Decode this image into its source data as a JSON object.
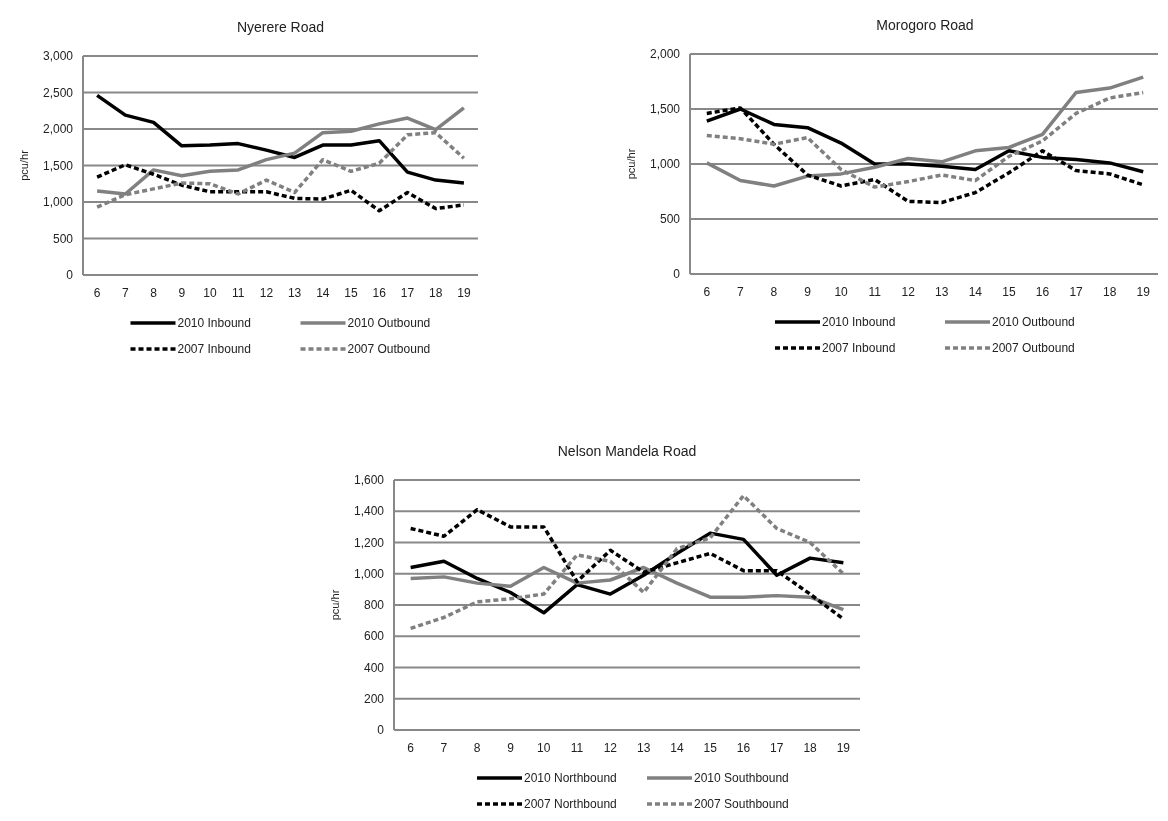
{
  "chart_data": [
    {
      "type": "line",
      "title": "Nyerere Road",
      "ylabel": "pcu/hr",
      "categories": [
        "6",
        "7",
        "8",
        "9",
        "10",
        "11",
        "12",
        "13",
        "14",
        "15",
        "16",
        "17",
        "18",
        "19"
      ],
      "ylim": [
        0,
        3000
      ],
      "yticks": [
        {
          "value": 0,
          "label": "0"
        },
        {
          "value": 500,
          "label": "500"
        },
        {
          "value": 1000,
          "label": "1,000"
        },
        {
          "value": 1500,
          "label": "1,500"
        },
        {
          "value": 2000,
          "label": "2,000"
        },
        {
          "value": 2500,
          "label": "2,500"
        },
        {
          "value": 3000,
          "label": "3,000"
        }
      ],
      "grid": "y",
      "legend": "bottom",
      "series": [
        {
          "name": "2010 Inbound",
          "color": "#000000",
          "line_style": "solid",
          "values": [
            2460,
            2190,
            2090,
            1770,
            1780,
            1800,
            1710,
            1610,
            1780,
            1780,
            1840,
            1410,
            1300,
            1260
          ]
        },
        {
          "name": "2010 Outbound",
          "color": "#808080",
          "line_style": "solid",
          "values": [
            1150,
            1110,
            1440,
            1360,
            1420,
            1440,
            1580,
            1670,
            1950,
            1970,
            2070,
            2150,
            1990,
            2290
          ]
        },
        {
          "name": "2007 Inbound",
          "color": "#000000",
          "line_style": "dashed",
          "values": [
            1340,
            1510,
            1380,
            1230,
            1140,
            1140,
            1140,
            1050,
            1040,
            1160,
            880,
            1130,
            910,
            960
          ]
        },
        {
          "name": "2007 Outbound",
          "color": "#808080",
          "line_style": "dashed",
          "values": [
            930,
            1100,
            1180,
            1260,
            1250,
            1110,
            1300,
            1130,
            1580,
            1420,
            1530,
            1920,
            1950,
            1600
          ]
        }
      ]
    },
    {
      "type": "line",
      "title": "Morogoro Road",
      "ylabel": "pcu/hr",
      "categories": [
        "6",
        "7",
        "8",
        "9",
        "10",
        "11",
        "12",
        "13",
        "14",
        "15",
        "16",
        "17",
        "18",
        "19"
      ],
      "ylim": [
        0,
        2000
      ],
      "yticks": [
        {
          "value": 0,
          "label": "0"
        },
        {
          "value": 500,
          "label": "500"
        },
        {
          "value": 1000,
          "label": "1,000"
        },
        {
          "value": 1500,
          "label": "1,500"
        },
        {
          "value": 2000,
          "label": "2,000"
        }
      ],
      "grid": "y",
      "legend": "bottom",
      "series": [
        {
          "name": "2010 Inbound",
          "color": "#000000",
          "line_style": "solid",
          "values": [
            1390,
            1500,
            1360,
            1330,
            1190,
            1000,
            1000,
            980,
            950,
            1120,
            1060,
            1040,
            1010,
            930
          ]
        },
        {
          "name": "2010 Outbound",
          "color": "#808080",
          "line_style": "solid",
          "values": [
            1010,
            850,
            800,
            890,
            910,
            970,
            1050,
            1020,
            1120,
            1150,
            1270,
            1650,
            1690,
            1790
          ]
        },
        {
          "name": "2007 Inbound",
          "color": "#000000",
          "line_style": "dashed",
          "values": [
            1460,
            1510,
            1180,
            900,
            800,
            860,
            660,
            650,
            740,
            920,
            1120,
            940,
            910,
            810
          ]
        },
        {
          "name": "2007 Outbound",
          "color": "#808080",
          "line_style": "dashed",
          "values": [
            1260,
            1230,
            1180,
            1240,
            950,
            790,
            840,
            900,
            850,
            1070,
            1210,
            1460,
            1600,
            1650
          ]
        }
      ]
    },
    {
      "type": "line",
      "title": "Nelson Mandela Road",
      "ylabel": "pcu/hr",
      "categories": [
        "6",
        "7",
        "8",
        "9",
        "10",
        "11",
        "12",
        "13",
        "14",
        "15",
        "16",
        "17",
        "18",
        "19"
      ],
      "ylim": [
        0,
        1600
      ],
      "yticks": [
        {
          "value": 0,
          "label": "0"
        },
        {
          "value": 200,
          "label": "200"
        },
        {
          "value": 400,
          "label": "400"
        },
        {
          "value": 600,
          "label": "600"
        },
        {
          "value": 800,
          "label": "800"
        },
        {
          "value": 1000,
          "label": "1,000"
        },
        {
          "value": 1200,
          "label": "1,200"
        },
        {
          "value": 1400,
          "label": "1,400"
        },
        {
          "value": 1600,
          "label": "1,600"
        }
      ],
      "grid": "y",
      "legend": "bottom",
      "series": [
        {
          "name": "2010 Northbound",
          "color": "#000000",
          "line_style": "solid",
          "values": [
            1040,
            1080,
            970,
            880,
            750,
            930,
            870,
            990,
            1130,
            1260,
            1220,
            990,
            1100,
            1070
          ]
        },
        {
          "name": "2010 Southbound",
          "color": "#808080",
          "line_style": "solid",
          "values": [
            970,
            980,
            940,
            920,
            1040,
            940,
            960,
            1040,
            940,
            850,
            850,
            860,
            850,
            770
          ]
        },
        {
          "name": "2007 Northbound",
          "color": "#000000",
          "line_style": "dashed",
          "values": [
            1290,
            1240,
            1410,
            1300,
            1300,
            950,
            1150,
            1010,
            1070,
            1130,
            1020,
            1020,
            870,
            710
          ]
        },
        {
          "name": "2007 Southbound",
          "color": "#808080",
          "line_style": "dashed",
          "values": [
            650,
            720,
            820,
            840,
            870,
            1120,
            1080,
            880,
            1160,
            1230,
            1500,
            1290,
            1200,
            1000
          ]
        }
      ]
    }
  ]
}
